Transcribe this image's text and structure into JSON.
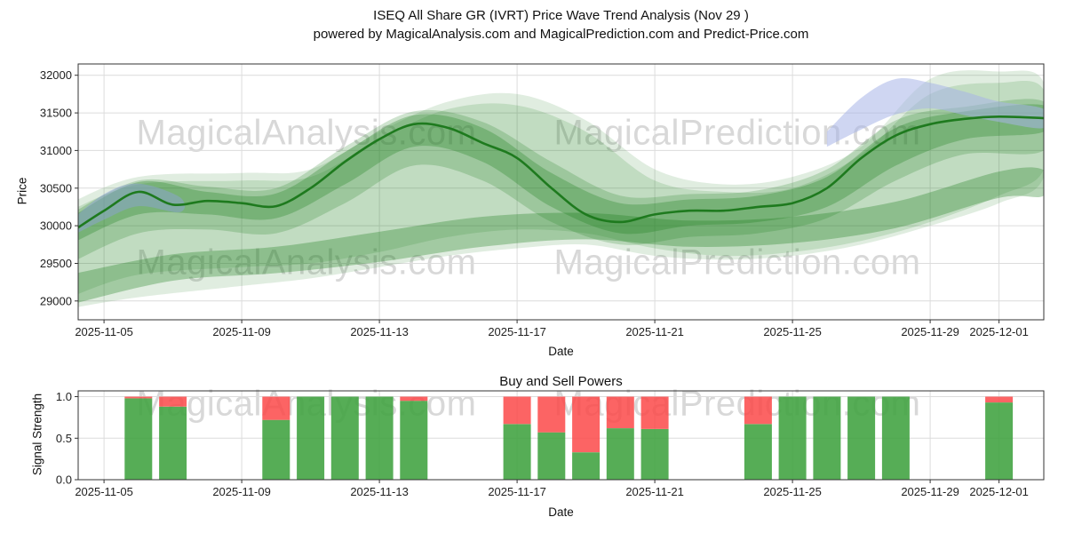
{
  "figure": {
    "title_line1": "ISEQ All Share GR (IVRT) Price Wave Trend Analysis (Nov 29 )",
    "title_line2": "powered by MagicalAnalysis.com and MagicalPrediction.com and Predict-Price.com"
  },
  "watermarks": {
    "left": "MagicalAnalysis.com",
    "right": "MagicalPrediction.com"
  },
  "colors": {
    "band_green": "#208020",
    "trend_green": "#1e7a1e",
    "band_blue_left": "#8ea0dd",
    "band_blue_right": "#a8b4e8",
    "bar_green": "#3fa23f",
    "bar_red": "#fb4949",
    "grid": "#dcdcdc",
    "spine": "#333333",
    "tick_text": "#222222"
  },
  "chart_data": [
    {
      "id": "price_wave",
      "type": "area",
      "ylabel": "Price",
      "xlabel": "Date",
      "xlim": [
        0.25,
        28.3
      ],
      "ylim": [
        28750,
        32150
      ],
      "yticks": [
        29000,
        29500,
        30000,
        30500,
        31000,
        31500,
        32000
      ],
      "xticks": [
        {
          "pos": 1,
          "label": "2025-11-05"
        },
        {
          "pos": 5,
          "label": "2025-11-09"
        },
        {
          "pos": 9,
          "label": "2025-11-13"
        },
        {
          "pos": 13,
          "label": "2025-11-17"
        },
        {
          "pos": 17,
          "label": "2025-11-21"
        },
        {
          "pos": 21,
          "label": "2025-11-25"
        },
        {
          "pos": 25,
          "label": "2025-11-29"
        },
        {
          "pos": 27,
          "label": "2025-12-01"
        }
      ],
      "bands": [
        {
          "name": "outer-envelope",
          "color": "#208020",
          "alpha": 0.14,
          "x": [
            0,
            2,
            5,
            7,
            9,
            11,
            13,
            15,
            17,
            19,
            21,
            23,
            25,
            27,
            28.3
          ],
          "upper": [
            30300,
            30650,
            30700,
            30750,
            31250,
            31650,
            31750,
            31400,
            30750,
            30550,
            30650,
            31050,
            31950,
            32050,
            31900
          ],
          "lower": [
            28900,
            29050,
            29200,
            29300,
            29450,
            29600,
            29700,
            29750,
            29600,
            29550,
            29600,
            29750,
            30000,
            30300,
            30650
          ]
        },
        {
          "name": "second-envelope",
          "color": "#208020",
          "alpha": 0.16,
          "x": [
            0,
            2,
            5,
            7,
            9,
            11,
            13,
            15,
            17,
            19,
            21,
            23,
            25,
            27,
            28.3
          ],
          "upper": [
            30200,
            30550,
            30600,
            30650,
            31150,
            31550,
            31600,
            31250,
            30600,
            30450,
            30500,
            30950,
            31750,
            31900,
            31800
          ],
          "lower": [
            29050,
            29350,
            29450,
            29500,
            29650,
            29850,
            29950,
            29900,
            29700,
            29600,
            29650,
            29800,
            30050,
            30400,
            30750
          ]
        },
        {
          "name": "mid-band",
          "color": "#208020",
          "alpha": 0.22,
          "x": [
            0,
            2,
            4,
            6,
            8,
            10,
            12,
            14,
            16,
            18,
            20,
            22,
            24,
            26,
            28.3
          ],
          "upper": [
            30150,
            30600,
            30520,
            30500,
            31050,
            31520,
            31380,
            30850,
            30400,
            30420,
            30470,
            30750,
            31400,
            31580,
            31650
          ],
          "lower": [
            29500,
            29900,
            29950,
            29900,
            30300,
            30800,
            30600,
            30050,
            29750,
            29850,
            29900,
            30100,
            30600,
            30950,
            31000
          ]
        },
        {
          "name": "inner-band",
          "color": "#208020",
          "alpha": 0.3,
          "x": [
            0,
            2,
            4,
            6,
            8,
            10,
            12,
            14,
            16,
            18,
            20,
            22,
            24,
            26,
            28.3
          ],
          "upper": [
            30100,
            30580,
            30450,
            30430,
            30980,
            31470,
            31300,
            30700,
            30300,
            30350,
            30400,
            30650,
            31300,
            31520,
            31600
          ],
          "lower": [
            29750,
            30150,
            30150,
            30100,
            30550,
            31050,
            30850,
            30250,
            29900,
            30000,
            30050,
            30250,
            30800,
            31150,
            31250
          ]
        },
        {
          "name": "lower-stripe",
          "color": "#208020",
          "alpha": 0.32,
          "x": [
            0,
            3,
            6,
            9,
            12,
            15,
            18,
            21,
            24,
            27,
            28.3
          ],
          "upper": [
            29350,
            29620,
            29720,
            29920,
            30120,
            30170,
            30070,
            30120,
            30320,
            30720,
            30740
          ],
          "lower": [
            28950,
            29270,
            29370,
            29520,
            29720,
            29820,
            29720,
            29770,
            29970,
            30370,
            30400
          ]
        },
        {
          "name": "blue-patch-left",
          "color": "#8ea0dd",
          "alpha": 0.45,
          "x": [
            0,
            1,
            2,
            3.2
          ],
          "upper": [
            30050,
            30420,
            30560,
            30380
          ],
          "lower": [
            29850,
            30080,
            30260,
            30180
          ]
        },
        {
          "name": "blue-patch-right",
          "color": "#a8b4e8",
          "alpha": 0.55,
          "x": [
            22,
            23,
            24,
            25,
            26,
            27,
            28.3
          ],
          "upper": [
            31250,
            31700,
            31950,
            31900,
            31780,
            31650,
            31550
          ],
          "lower": [
            31050,
            31280,
            31480,
            31560,
            31470,
            31380,
            31300
          ]
        }
      ],
      "trend_line": {
        "color": "#1e7a1e",
        "width": 2.6,
        "x": [
          0,
          1,
          2,
          3,
          4,
          5,
          6,
          7,
          8,
          9,
          10,
          11,
          12,
          13,
          14,
          15,
          16,
          17,
          18,
          19,
          20,
          21,
          22,
          23,
          24,
          25,
          26,
          27,
          28.3
        ],
        "y": [
          29900,
          30200,
          30450,
          30280,
          30330,
          30300,
          30260,
          30500,
          30850,
          31150,
          31350,
          31300,
          31100,
          30900,
          30500,
          30150,
          30050,
          30150,
          30200,
          30200,
          30250,
          30300,
          30500,
          30900,
          31200,
          31350,
          31420,
          31450,
          31430
        ]
      }
    },
    {
      "id": "buy_sell",
      "type": "bar",
      "title": "Buy and Sell Powers",
      "ylabel": "Signal Strength",
      "xlabel": "Date",
      "xlim": [
        0.25,
        28.3
      ],
      "ylim": [
        0,
        1.07
      ],
      "yticks": [
        0,
        0.5,
        1
      ],
      "ytick_labels": [
        "0.0",
        "0.5",
        "1.0"
      ],
      "xticks": [
        {
          "pos": 1,
          "label": "2025-11-05"
        },
        {
          "pos": 5,
          "label": "2025-11-09"
        },
        {
          "pos": 9,
          "label": "2025-11-13"
        },
        {
          "pos": 13,
          "label": "2025-11-17"
        },
        {
          "pos": 17,
          "label": "2025-11-21"
        },
        {
          "pos": 21,
          "label": "2025-11-25"
        },
        {
          "pos": 25,
          "label": "2025-11-29"
        },
        {
          "pos": 27,
          "label": "2025-12-01"
        }
      ],
      "bar_width": 0.8,
      "bars": [
        {
          "pos": 2,
          "buy": 0.98,
          "sell": 0.02
        },
        {
          "pos": 3,
          "buy": 0.88,
          "sell": 0.12
        },
        {
          "pos": 6,
          "buy": 0.72,
          "sell": 0.28
        },
        {
          "pos": 7,
          "buy": 1.0,
          "sell": 0.0
        },
        {
          "pos": 8,
          "buy": 1.0,
          "sell": 0.0
        },
        {
          "pos": 9,
          "buy": 1.0,
          "sell": 0.0
        },
        {
          "pos": 10,
          "buy": 0.95,
          "sell": 0.05
        },
        {
          "pos": 13,
          "buy": 0.67,
          "sell": 0.33
        },
        {
          "pos": 14,
          "buy": 0.57,
          "sell": 0.43
        },
        {
          "pos": 15,
          "buy": 0.33,
          "sell": 0.67
        },
        {
          "pos": 16,
          "buy": 0.62,
          "sell": 0.38
        },
        {
          "pos": 17,
          "buy": 0.61,
          "sell": 0.39
        },
        {
          "pos": 20,
          "buy": 0.67,
          "sell": 0.33
        },
        {
          "pos": 21,
          "buy": 1.0,
          "sell": 0.0
        },
        {
          "pos": 22,
          "buy": 1.0,
          "sell": 0.0
        },
        {
          "pos": 23,
          "buy": 1.0,
          "sell": 0.0
        },
        {
          "pos": 24,
          "buy": 1.0,
          "sell": 0.0
        },
        {
          "pos": 27,
          "buy": 0.93,
          "sell": 0.07
        }
      ]
    }
  ]
}
